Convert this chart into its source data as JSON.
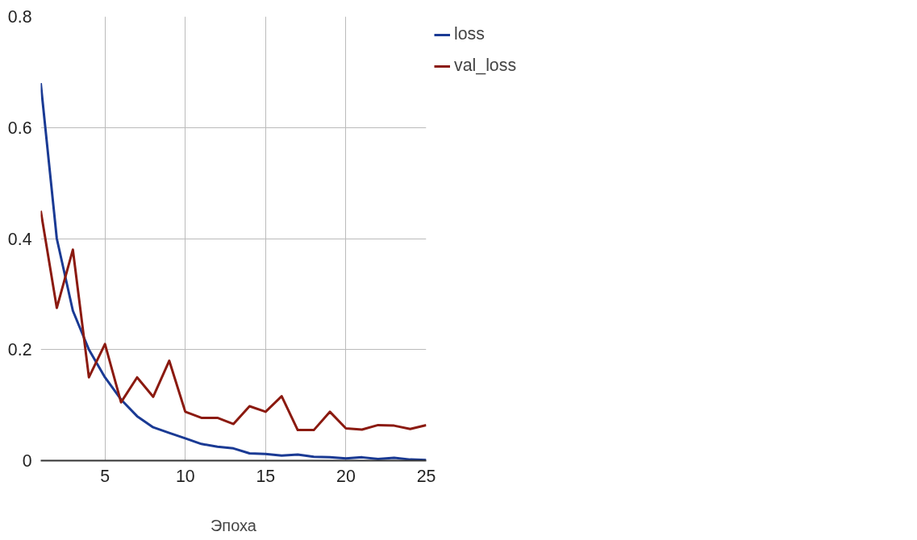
{
  "chart_data": {
    "type": "line",
    "xlabel": "Эпоха",
    "x": [
      1,
      2,
      3,
      4,
      5,
      6,
      7,
      8,
      9,
      10,
      11,
      12,
      13,
      14,
      15,
      16,
      17,
      18,
      19,
      20,
      21,
      22,
      23,
      24,
      25
    ],
    "series": [
      {
        "name": "loss",
        "color": "#1a3a94",
        "values": [
          0.68,
          0.4,
          0.27,
          0.2,
          0.15,
          0.11,
          0.08,
          0.06,
          0.05,
          0.04,
          0.03,
          0.025,
          0.022,
          0.013,
          0.012,
          0.009,
          0.011,
          0.007,
          0.006,
          0.004,
          0.006,
          0.003,
          0.005,
          0.002,
          0.001
        ]
      },
      {
        "name": "val_loss",
        "color": "#8b1a10",
        "values": [
          0.45,
          0.275,
          0.38,
          0.15,
          0.21,
          0.105,
          0.15,
          0.115,
          0.18,
          0.088,
          0.077,
          0.077,
          0.066,
          0.098,
          0.088,
          0.116,
          0.055,
          0.055,
          0.088,
          0.058,
          0.056,
          0.064,
          0.063,
          0.057,
          0.064
        ]
      }
    ],
    "xlim": [
      1,
      25
    ],
    "xticks": [
      5,
      10,
      15,
      20,
      25
    ],
    "ylim": [
      0,
      0.8
    ],
    "yticks": [
      0,
      0.2,
      0.4,
      0.6,
      0.8
    ],
    "grid": true,
    "legend": "top right",
    "marker": "none",
    "line_style": "solid"
  }
}
